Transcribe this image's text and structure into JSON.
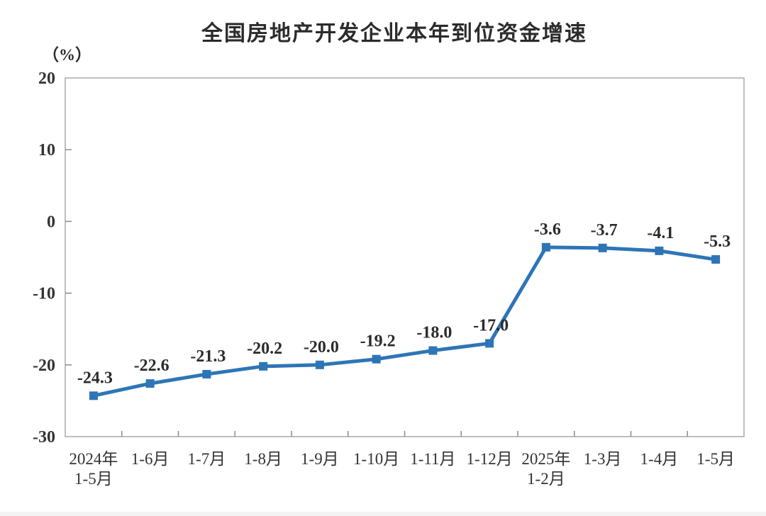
{
  "chart": {
    "title": "全国房地产开发企业本年到位资金增速",
    "unit_label": "（%）",
    "line_color": "#2E75B6",
    "axis_color": "#a9a9a9",
    "tick_color": "#8c8c8c",
    "label_color": "#2b2b2b",
    "axis_text_color": "#333333"
  },
  "chart_data": {
    "type": "line",
    "title": "全国房地产开发企业本年到位资金增速",
    "ylabel": "（%）",
    "xlabel": "",
    "categories": [
      "2024年\n1-5月",
      "1-6月",
      "1-7月",
      "1-8月",
      "1-9月",
      "1-10月",
      "1-11月",
      "1-12月",
      "2025年\n1-2月",
      "1-3月",
      "1-4月",
      "1-5月"
    ],
    "values": [
      -24.3,
      -22.6,
      -21.3,
      -20.2,
      -20.0,
      -19.2,
      -18.0,
      -17.0,
      -3.6,
      -3.7,
      -4.1,
      -5.3
    ],
    "point_labels": [
      "-24.3",
      "-22.6",
      "-21.3",
      "-20.2",
      "-20.0",
      "-19.2",
      "-18.0",
      "-17.0",
      "-3.6",
      "-3.7",
      "-4.1",
      "-5.3"
    ],
    "ylim": [
      -30,
      20
    ],
    "yticks": [
      20,
      10,
      0,
      -10,
      -20,
      -30
    ],
    "grid": false,
    "legend": "none",
    "marker": "square",
    "series_name": "本年到位资金增速"
  }
}
